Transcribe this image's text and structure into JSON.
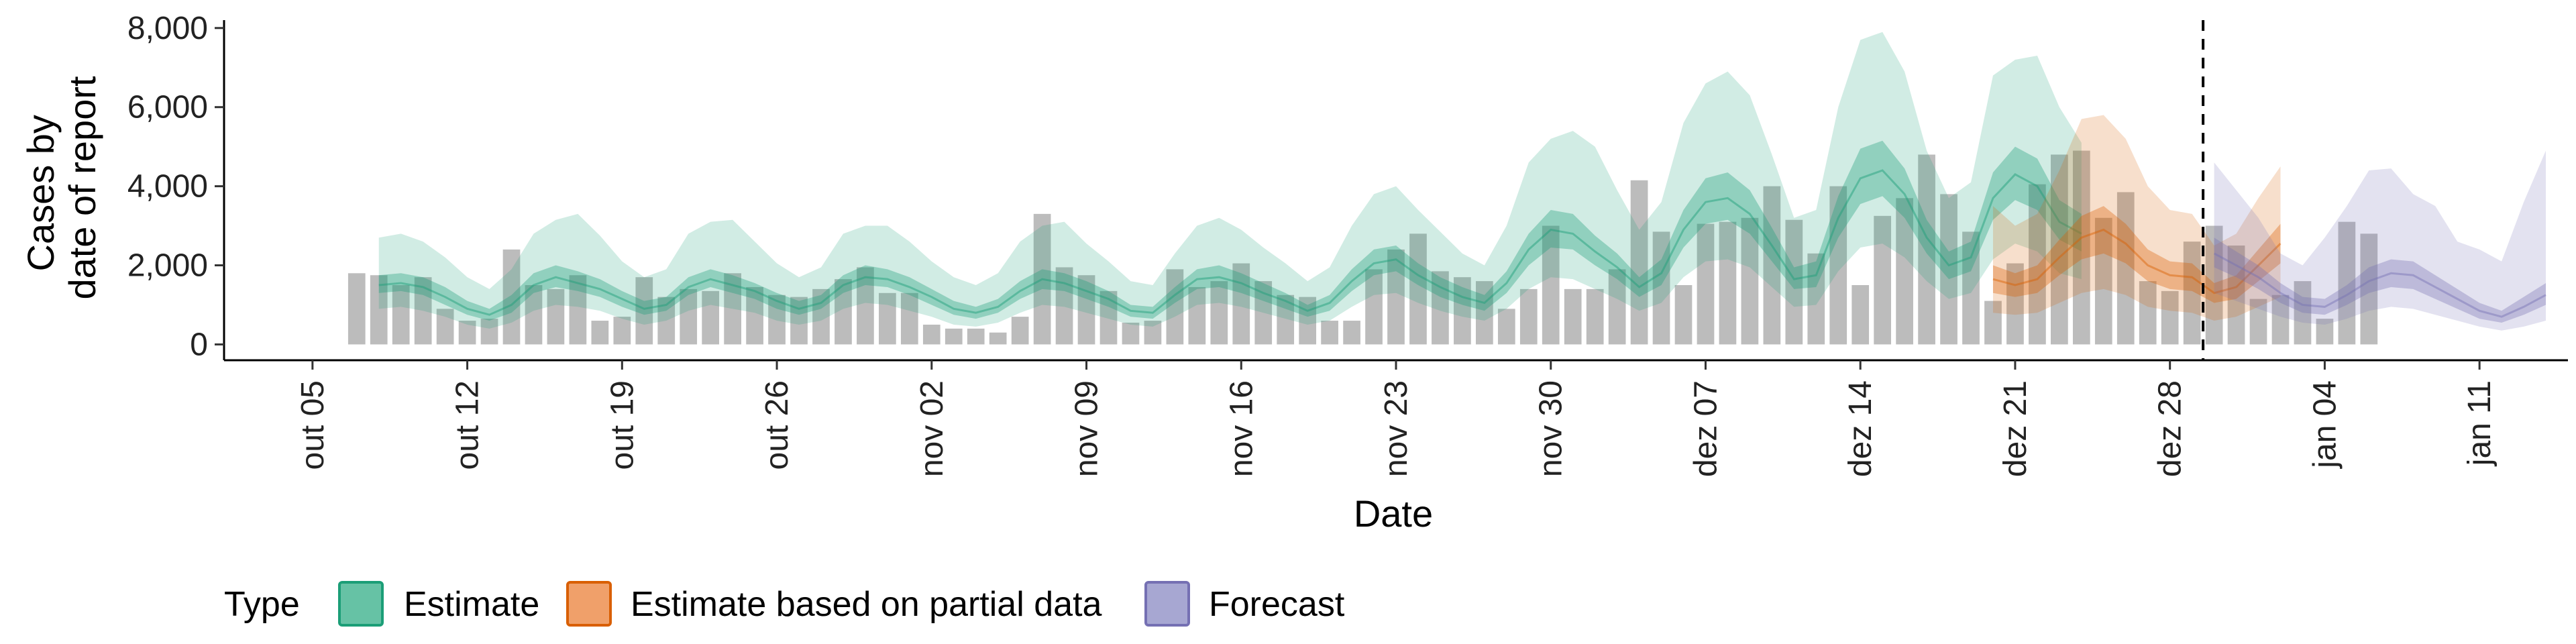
{
  "chart_data": {
    "type": "bar",
    "xlabel": "Date",
    "ylabel_lines": [
      "Cases by",
      "date of report"
    ],
    "y_ticks": [
      0,
      2000,
      4000,
      6000,
      8000
    ],
    "y_tick_labels": [
      "0",
      "2,000",
      "4,000",
      "6,000",
      "8,000"
    ],
    "ylim": [
      -400,
      8200
    ],
    "x_ticks": [
      {
        "date": "2020-10-05",
        "label": "out 05"
      },
      {
        "date": "2020-10-12",
        "label": "out 12"
      },
      {
        "date": "2020-10-19",
        "label": "out 19"
      },
      {
        "date": "2020-10-26",
        "label": "out 26"
      },
      {
        "date": "2020-11-02",
        "label": "nov 02"
      },
      {
        "date": "2020-11-09",
        "label": "nov 09"
      },
      {
        "date": "2020-11-16",
        "label": "nov 16"
      },
      {
        "date": "2020-11-23",
        "label": "nov 23"
      },
      {
        "date": "2020-11-30",
        "label": "nov 30"
      },
      {
        "date": "2020-12-07",
        "label": "dez 07"
      },
      {
        "date": "2020-12-14",
        "label": "dez 14"
      },
      {
        "date": "2020-12-21",
        "label": "dez 21"
      },
      {
        "date": "2020-12-28",
        "label": "dez 28"
      },
      {
        "date": "2021-01-04",
        "label": "jan 04"
      },
      {
        "date": "2021-01-11",
        "label": "jan 11"
      }
    ],
    "x_range": [
      "2020-10-01",
      "2021-01-15"
    ],
    "cutoff_date": "2020-12-29",
    "grid": false,
    "legend": {
      "title": "Type",
      "position": "bottom",
      "entries": [
        {
          "label": "Estimate",
          "fill": "#66c2a5",
          "stroke": "#1b9e77"
        },
        {
          "label": "Estimate based on partial data",
          "fill": "#f0a06a",
          "stroke": "#d95f02"
        },
        {
          "label": "Forecast",
          "fill": "#a7a7d2",
          "stroke": "#7570b3"
        }
      ]
    },
    "colors": {
      "bars": "#a9a9a9",
      "estimate": "#1b9e77",
      "partial": "#d95f02",
      "forecast": "#7570b3"
    },
    "reported_cases": {
      "start_date": "2020-10-07",
      "values": [
        1800,
        1750,
        1500,
        1700,
        900,
        600,
        650,
        2400,
        1500,
        1400,
        1750,
        600,
        700,
        1700,
        1200,
        1400,
        1350,
        1800,
        1450,
        1250,
        1200,
        1400,
        1650,
        1950,
        1300,
        1300,
        500,
        400,
        400,
        300,
        700,
        3300,
        1950,
        1750,
        1350,
        550,
        600,
        1900,
        1450,
        1600,
        2050,
        1600,
        1250,
        1200,
        600,
        600,
        1900,
        2400,
        2800,
        1850,
        1700,
        1600,
        900,
        1400,
        3000,
        1400,
        1400,
        1900,
        4150,
        2850,
        1500,
        3050,
        3100,
        3200,
        4000,
        3150,
        2300,
        4000,
        1500,
        3250,
        3700,
        4800,
        3800,
        2850,
        1100,
        2050,
        4050,
        4800,
        4900,
        3200,
        3850,
        1600,
        1350,
        2600,
        3000,
        2500,
        1150,
        1250,
        1600,
        650,
        3100,
        2800
      ]
    },
    "estimate": {
      "start_date": "2020-10-08",
      "median": [
        1500,
        1550,
        1450,
        1200,
        900,
        750,
        1000,
        1500,
        1700,
        1550,
        1400,
        1150,
        900,
        1000,
        1450,
        1650,
        1500,
        1350,
        1100,
        900,
        1050,
        1500,
        1700,
        1650,
        1450,
        1200,
        900,
        800,
        950,
        1350,
        1650,
        1550,
        1350,
        1150,
        850,
        800,
        1250,
        1650,
        1700,
        1550,
        1300,
        1100,
        850,
        1050,
        1600,
        2050,
        2150,
        1750,
        1450,
        1200,
        1050,
        1550,
        2400,
        2900,
        2800,
        2350,
        1950,
        1450,
        1800,
        2900,
        3600,
        3700,
        3300,
        2500,
        1650,
        1750,
        3200,
        4200,
        4400,
        3800,
        2700,
        2000,
        2200,
        3700,
        4300,
        4000,
        3100,
        2800
      ],
      "inner_lo": [
        1300,
        1350,
        1250,
        1000,
        750,
        600,
        800,
        1300,
        1450,
        1350,
        1200,
        950,
        750,
        850,
        1250,
        1450,
        1300,
        1150,
        900,
        750,
        900,
        1300,
        1500,
        1450,
        1250,
        1000,
        750,
        650,
        800,
        1150,
        1400,
        1350,
        1150,
        950,
        700,
        650,
        1050,
        1400,
        1450,
        1300,
        1100,
        900,
        700,
        850,
        1350,
        1750,
        1850,
        1500,
        1200,
        1000,
        850,
        1300,
        2000,
        2450,
        2400,
        2000,
        1650,
        1200,
        1500,
        2450,
        3050,
        3150,
        2800,
        2100,
        1400,
        1450,
        2700,
        3550,
        3750,
        3200,
        2300,
        1650,
        1850,
        3150,
        3650,
        3400,
        2650,
        2350
      ],
      "inner_hi": [
        1750,
        1800,
        1700,
        1450,
        1100,
        900,
        1250,
        1800,
        2000,
        1850,
        1650,
        1350,
        1100,
        1200,
        1700,
        1900,
        1750,
        1550,
        1300,
        1100,
        1250,
        1750,
        2000,
        1900,
        1700,
        1400,
        1100,
        950,
        1150,
        1600,
        1900,
        1800,
        1600,
        1350,
        1000,
        950,
        1450,
        1900,
        2000,
        1800,
        1550,
        1300,
        1000,
        1250,
        1900,
        2400,
        2500,
        2050,
        1700,
        1450,
        1250,
        1850,
        2800,
        3400,
        3300,
        2750,
        2300,
        1700,
        2150,
        3400,
        4200,
        4350,
        3900,
        2950,
        1950,
        2100,
        3750,
        4950,
        5150,
        4450,
        3150,
        2350,
        2600,
        4350,
        5000,
        4700,
        3650,
        3300
      ],
      "outer_lo": [
        900,
        950,
        850,
        700,
        500,
        400,
        550,
        850,
        1000,
        950,
        850,
        650,
        500,
        600,
        850,
        1000,
        900,
        800,
        600,
        500,
        600,
        900,
        1050,
        1000,
        850,
        700,
        500,
        450,
        550,
        800,
        1000,
        950,
        800,
        650,
        500,
        450,
        700,
        1000,
        1050,
        950,
        800,
        650,
        500,
        600,
        950,
        1250,
        1300,
        1050,
        850,
        700,
        600,
        900,
        1400,
        1700,
        1650,
        1400,
        1150,
        850,
        1050,
        1700,
        2100,
        2150,
        1950,
        1450,
        950,
        1000,
        1850,
        2450,
        2550,
        2200,
        1600,
        1150,
        1300,
        2150,
        2550,
        2350,
        1800,
        1650
      ],
      "outer_hi": [
        2700,
        2800,
        2600,
        2200,
        1700,
        1400,
        1900,
        2800,
        3150,
        3300,
        2750,
        2100,
        1700,
        1900,
        2800,
        3100,
        3150,
        2600,
        2050,
        1700,
        1950,
        2800,
        3000,
        3000,
        2600,
        2100,
        1700,
        1500,
        1800,
        2600,
        3000,
        3100,
        2550,
        2100,
        1600,
        1500,
        2300,
        3000,
        3200,
        2900,
        2450,
        2050,
        1600,
        1950,
        3000,
        3800,
        4000,
        3400,
        2850,
        2300,
        2000,
        3000,
        4600,
        5200,
        5400,
        5000,
        3900,
        2900,
        3600,
        5600,
        6600,
        6900,
        6300,
        4800,
        3200,
        3400,
        6000,
        7700,
        7900,
        6900,
        4900,
        3700,
        4100,
        6800,
        7200,
        7300,
        6000,
        5100
      ]
    },
    "partial": {
      "start_date": "2020-12-20",
      "median": [
        1650,
        1500,
        1650,
        2200,
        2700,
        2900,
        2550,
        2000,
        1750,
        1700,
        1300,
        1450,
        2000,
        2550
      ],
      "inner_lo": [
        1300,
        1200,
        1300,
        1750,
        2150,
        2300,
        2050,
        1600,
        1400,
        1350,
        1050,
        1150,
        1600,
        2050
      ],
      "inner_hi": [
        2000,
        1800,
        2000,
        2650,
        3250,
        3500,
        3050,
        2400,
        2100,
        2050,
        1550,
        1750,
        2400,
        3050
      ],
      "outer_lo": [
        800,
        750,
        800,
        1050,
        1300,
        1400,
        1250,
        950,
        850,
        800,
        600,
        700,
        950,
        1200
      ],
      "outer_hi": [
        3500,
        3000,
        3300,
        4400,
        5700,
        5800,
        5200,
        4000,
        3400,
        3300,
        2500,
        2800,
        3700,
        4500
      ]
    },
    "forecast": {
      "start_date": "2020-12-30",
      "median": [
        2300,
        2000,
        1700,
        1300,
        1000,
        950,
        1250,
        1600,
        1800,
        1750,
        1450,
        1150,
        850,
        700,
        950,
        1250
      ],
      "inner_lo": [
        1950,
        1700,
        1400,
        1050,
        800,
        750,
        1000,
        1300,
        1450,
        1400,
        1150,
        900,
        650,
        550,
        750,
        1000
      ],
      "inner_hi": [
        2700,
        2350,
        2000,
        1550,
        1200,
        1150,
        1500,
        1950,
        2150,
        2100,
        1750,
        1400,
        1050,
        850,
        1200,
        1550
      ],
      "outer_lo": [
        1300,
        1100,
        900,
        700,
        550,
        500,
        650,
        850,
        950,
        900,
        750,
        600,
        450,
        350,
        450,
        600
      ],
      "outer_hi": [
        4600,
        3900,
        3200,
        2300,
        2000,
        2700,
        3500,
        4400,
        4450,
        3800,
        3500,
        2600,
        2400,
        2100,
        3600,
        4900
      ]
    }
  }
}
